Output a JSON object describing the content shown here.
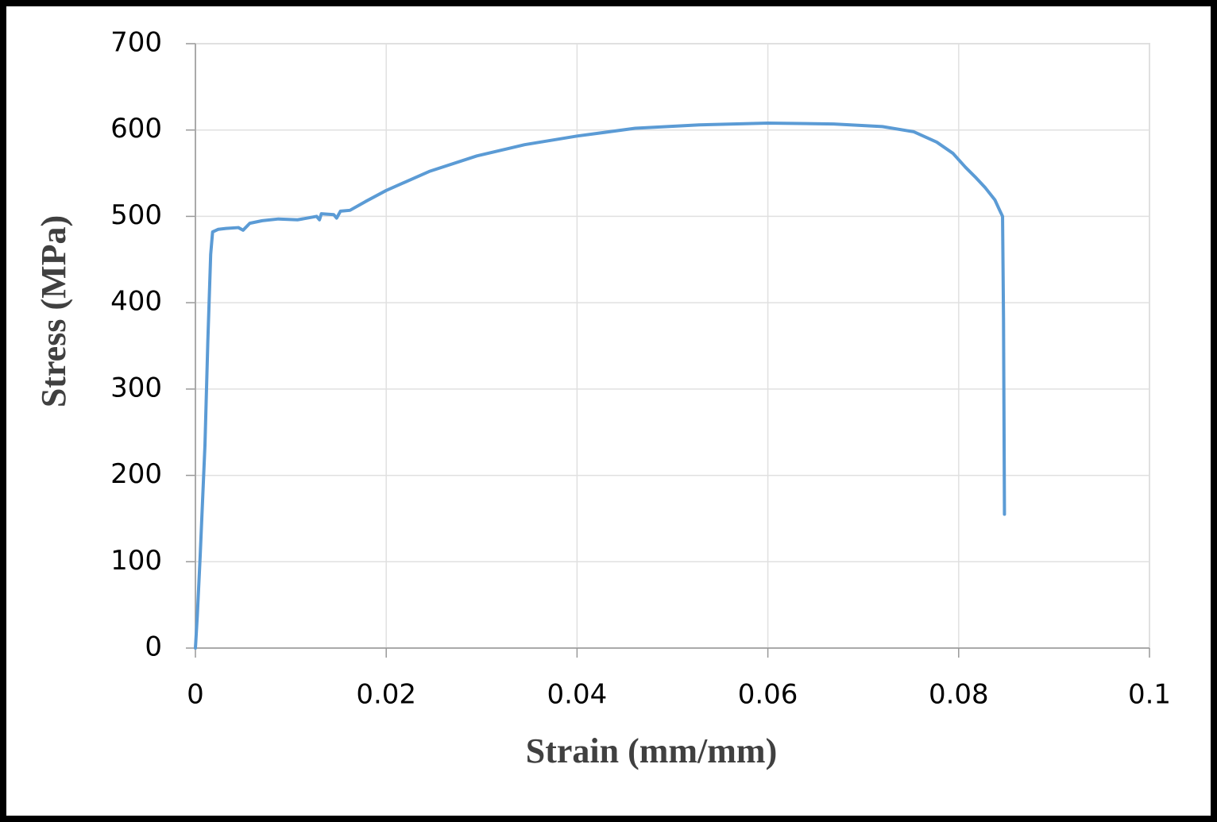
{
  "chart_data": {
    "type": "line",
    "xlabel": "Strain (mm/mm)",
    "ylabel": "Stress (MPa)",
    "xlim": [
      0,
      0.1
    ],
    "ylim": [
      0,
      700
    ],
    "xticks": [
      0,
      0.02,
      0.04,
      0.06,
      0.08,
      0.1
    ],
    "yticks": [
      0,
      100,
      200,
      300,
      400,
      500,
      600,
      700
    ],
    "grid": true,
    "series": [
      {
        "color": "#5b9bd5",
        "x": [
          0,
          0.0002,
          0.0005,
          0.001,
          0.0013,
          0.0016,
          0.0018,
          0.0024,
          0.0032,
          0.0045,
          0.005,
          0.0057,
          0.007,
          0.0087,
          0.0107,
          0.0127,
          0.013,
          0.0132,
          0.0145,
          0.0148,
          0.0152,
          0.0162,
          0.0178,
          0.02,
          0.0245,
          0.0295,
          0.0345,
          0.04,
          0.0461,
          0.0528,
          0.06,
          0.0669,
          0.072,
          0.0753,
          0.0777,
          0.0794,
          0.0807,
          0.0817,
          0.0828,
          0.0838,
          0.0843,
          0.0846,
          0.0847,
          0.0848
        ],
        "values": [
          0,
          38,
          107,
          235,
          355,
          456,
          482,
          485,
          486,
          487,
          484,
          492,
          495,
          497,
          496,
          500,
          496,
          503,
          502,
          498,
          506,
          507,
          517,
          530,
          552,
          570,
          583,
          593,
          602,
          606,
          608,
          607,
          604,
          598,
          586,
          573,
          557,
          546,
          533,
          519,
          507,
          500,
          383,
          155
        ]
      }
    ]
  }
}
